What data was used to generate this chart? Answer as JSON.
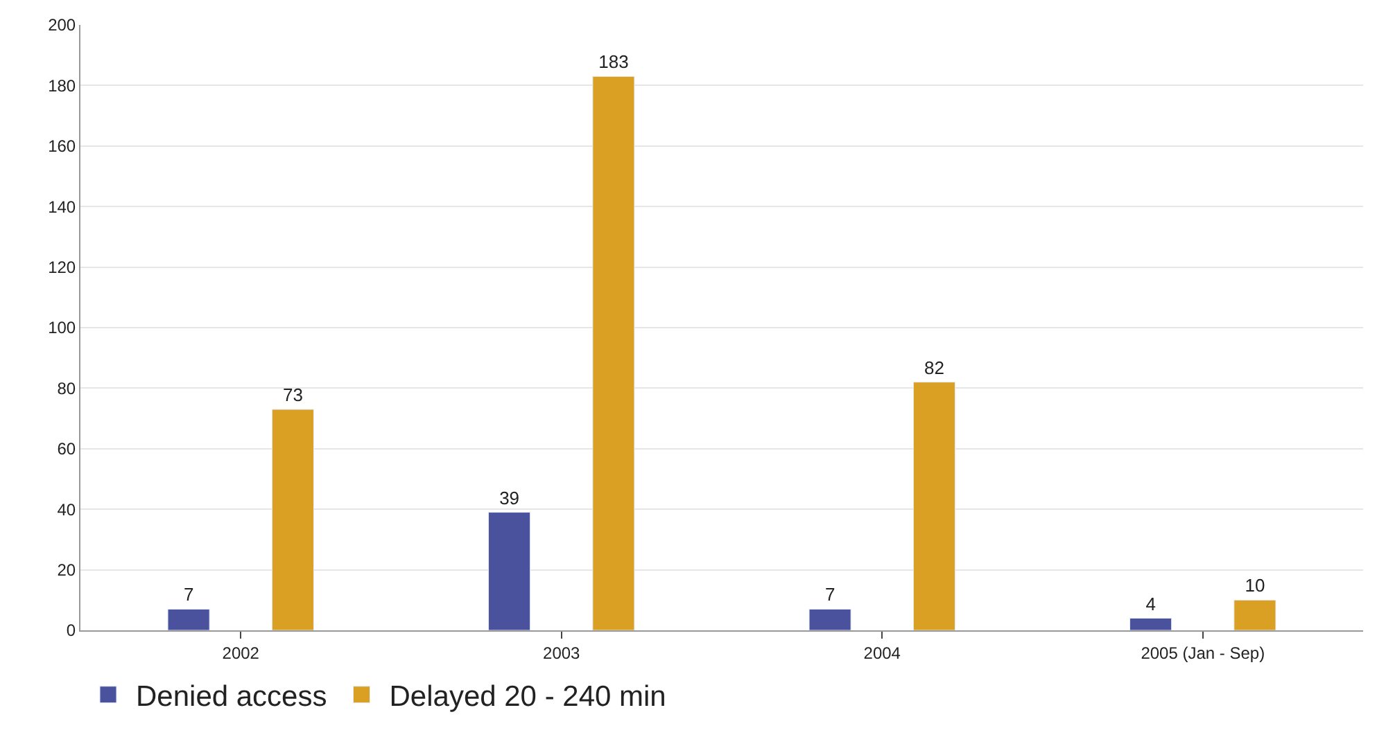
{
  "chart_data": {
    "type": "bar",
    "categories": [
      "2002",
      "2003",
      "2004",
      "2005 (Jan - Sep)"
    ],
    "series": [
      {
        "name": "Denied access",
        "color": "#4a529e",
        "values": [
          7,
          39,
          7,
          4
        ]
      },
      {
        "name": "Delayed 20 - 240 min",
        "color": "#daa024",
        "values": [
          73,
          183,
          82,
          10
        ]
      }
    ],
    "ylim": [
      0,
      200
    ],
    "yticks": [
      0,
      20,
      40,
      60,
      80,
      100,
      120,
      140,
      160,
      180,
      200
    ],
    "grid": "y",
    "legend": "bottom left",
    "data_labels": true
  }
}
